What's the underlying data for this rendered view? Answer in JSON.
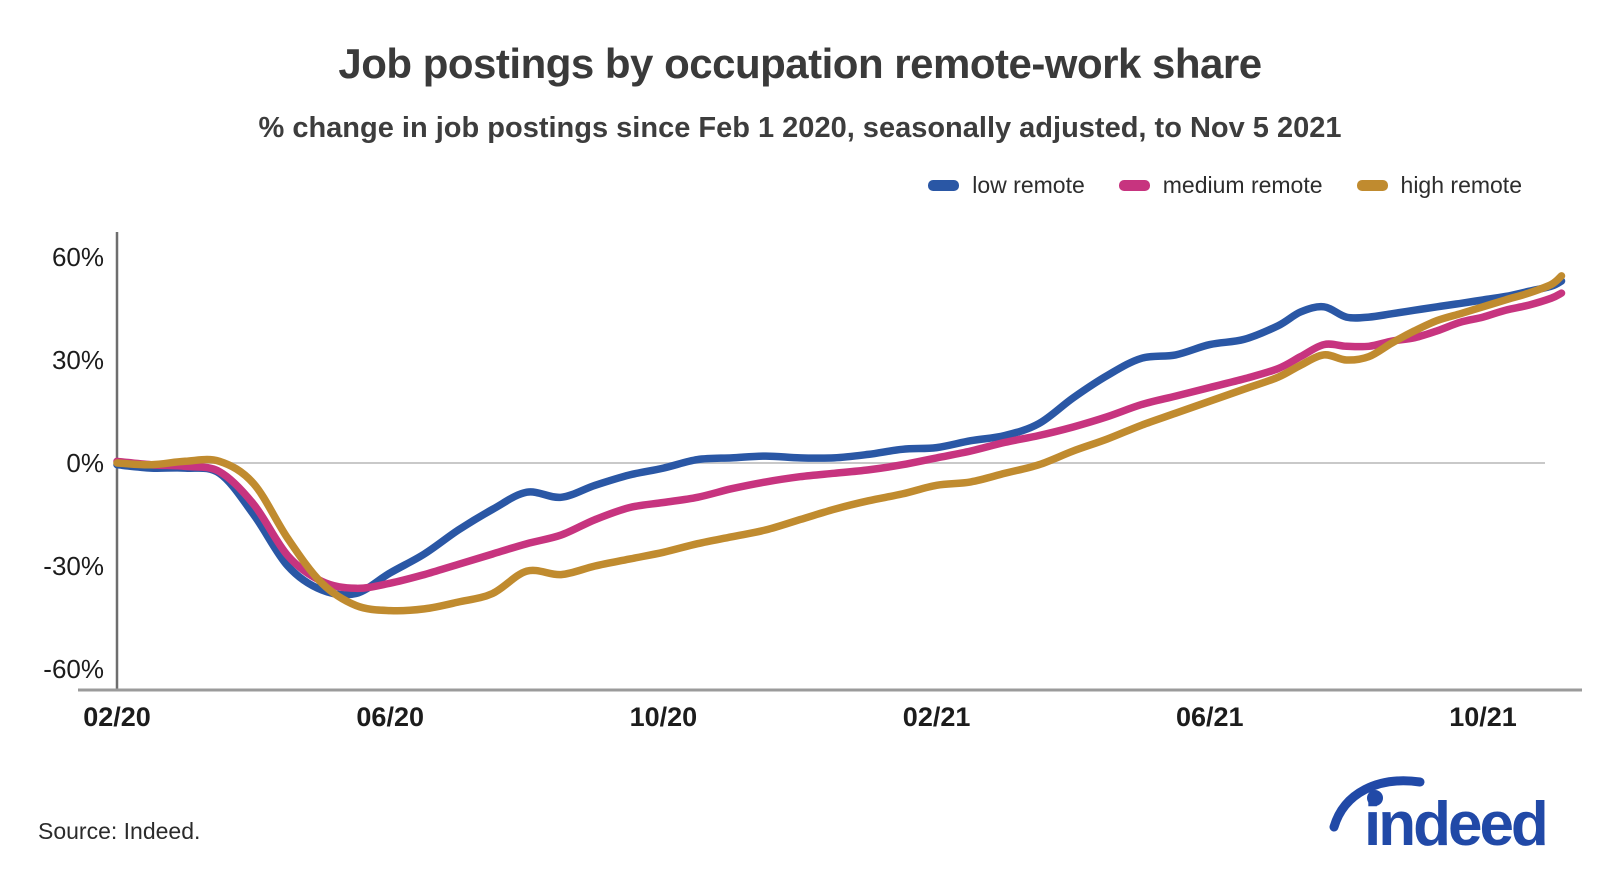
{
  "header": {
    "title": "Job postings by occupation remote-work share",
    "subtitle": "% change in job postings since Feb 1 2020, seasonally adjusted, to Nov 5 2021"
  },
  "legend": [
    {
      "label": "low remote",
      "color": "#2a57a5"
    },
    {
      "label": "medium remote",
      "color": "#c7347f"
    },
    {
      "label": "high remote",
      "color": "#c08b2f"
    }
  ],
  "footer": {
    "source": "Source: Indeed.",
    "logo_text": "indeed",
    "logo_color": "#2149a7"
  },
  "chart_data": {
    "type": "line",
    "title": "Job postings by occupation remote-work share",
    "subtitle": "% change in job postings since Feb 1 2020, seasonally adjusted, to Nov 5 2021",
    "xlabel": "",
    "ylabel": "% change in job postings since Feb 1 2020",
    "x_unit": "months since Feb 1 2020",
    "xlim": [
      0,
      21.3
    ],
    "ylim": [
      -66,
      67
    ],
    "grid": "zero-line only",
    "legend_position": "top-right",
    "axis_colors": {
      "y_axis": "#6e6e6e",
      "bottom_line": "#9b9b9b",
      "zero_gridline": "#c9c9c9"
    },
    "x": [
      0,
      0.5,
      1,
      1.5,
      2,
      2.5,
      3,
      3.5,
      4,
      4.5,
      5,
      5.5,
      6,
      6.5,
      7,
      7.5,
      8,
      8.5,
      9,
      9.5,
      10,
      10.5,
      11,
      11.5,
      12,
      12.5,
      13,
      13.5,
      14,
      14.5,
      15,
      15.5,
      16,
      16.5,
      17,
      17.33,
      17.67,
      18,
      18.33,
      18.67,
      19,
      19.33,
      19.67,
      20,
      20.33,
      20.67,
      21,
      21.15
    ],
    "series": [
      {
        "name": "low remote",
        "color": "#2a57a5",
        "values": [
          -0.5,
          -1.5,
          -1.5,
          -3,
          -15,
          -30,
          -37,
          -38,
          -32,
          -26.5,
          -19.5,
          -13.5,
          -8.5,
          -10,
          -6.5,
          -3.5,
          -1.5,
          1,
          1.5,
          2,
          1.5,
          1.5,
          2.5,
          4,
          4.5,
          6.5,
          8,
          11.5,
          19,
          25.5,
          30.5,
          31.5,
          34.5,
          36,
          40,
          44,
          45.5,
          42.5,
          42.5,
          43.5,
          44.5,
          45.5,
          46.5,
          47.5,
          48.5,
          50,
          51.5,
          53
        ]
      },
      {
        "name": "medium remote",
        "color": "#c7347f",
        "values": [
          0.5,
          -0.5,
          -1,
          -2.5,
          -12,
          -27,
          -34.5,
          -36.5,
          -35,
          -32.5,
          -29.5,
          -26.5,
          -23.5,
          -21,
          -16.5,
          -13,
          -11.5,
          -10,
          -7.5,
          -5.5,
          -4,
          -3,
          -2,
          -0.5,
          1.5,
          3.5,
          6,
          8,
          10.5,
          13.5,
          17,
          19.5,
          22,
          24.5,
          27.5,
          31,
          34.5,
          34,
          34,
          35.5,
          36.5,
          38.5,
          41,
          42.5,
          44.5,
          46,
          48,
          49.5
        ]
      },
      {
        "name": "high remote",
        "color": "#c08b2f",
        "values": [
          0,
          -0.5,
          0.5,
          0.5,
          -6,
          -22,
          -35,
          -41.5,
          -43,
          -42.5,
          -40.5,
          -38,
          -31.5,
          -32.5,
          -30,
          -28,
          -26,
          -23.5,
          -21.5,
          -19.5,
          -16.5,
          -13.5,
          -11,
          -9,
          -6.5,
          -5.5,
          -3,
          -0.5,
          3.5,
          7,
          11,
          14.5,
          18,
          21.5,
          25,
          28.5,
          31.5,
          30,
          31,
          35,
          38.5,
          41.5,
          43.5,
          45.5,
          47.5,
          49.5,
          52,
          54.5
        ]
      }
    ],
    "xticks": [
      {
        "m": 0,
        "label": "02/20"
      },
      {
        "m": 4,
        "label": "06/20"
      },
      {
        "m": 8,
        "label": "10/20"
      },
      {
        "m": 12,
        "label": "02/21"
      },
      {
        "m": 16,
        "label": "06/21"
      },
      {
        "m": 20,
        "label": "10/21"
      }
    ],
    "yticks": [
      {
        "v": 60,
        "label": "60%"
      },
      {
        "v": 30,
        "label": "30%"
      },
      {
        "v": 0,
        "label": "0%"
      },
      {
        "v": -30,
        "label": "-30%"
      },
      {
        "v": -60,
        "label": "-60%"
      }
    ]
  }
}
